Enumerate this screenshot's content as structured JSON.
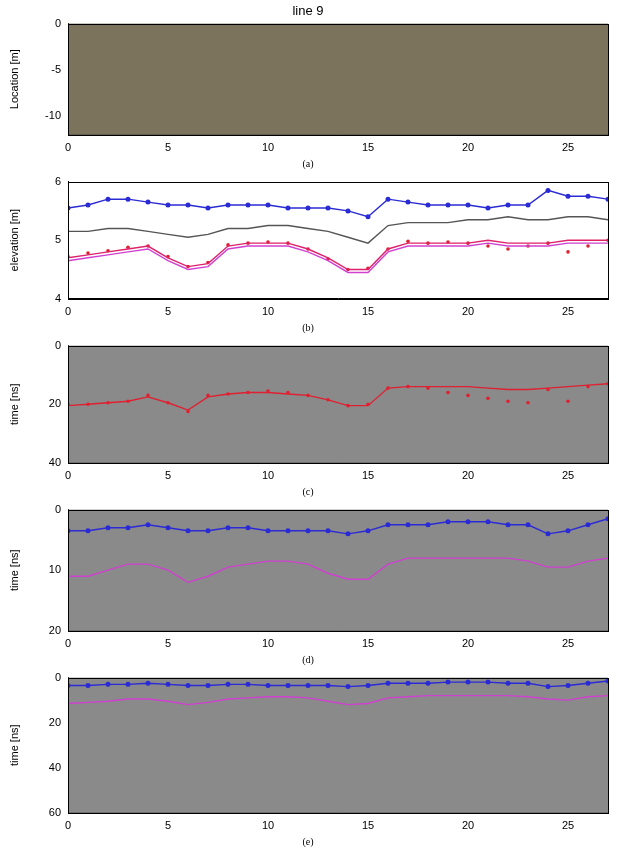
{
  "chart_data": [
    {
      "type": "image",
      "title": "line 9",
      "subtitle": "(a)",
      "y_label": "Location [m]",
      "color": "#7b735c",
      "grid": false,
      "xlim": [
        0,
        27
      ],
      "xticks": [
        0,
        5,
        10,
        15,
        20,
        25
      ],
      "ylim": [
        -12,
        0
      ],
      "yticks": [
        -10,
        -5,
        0
      ],
      "x": [],
      "series": []
    },
    {
      "type": "line",
      "subtitle": "(b)",
      "y_label": "elevation [m]",
      "grid": false,
      "xlim": [
        0,
        27
      ],
      "xticks": [
        0,
        5,
        10,
        15,
        20,
        25
      ],
      "ylim": [
        4,
        6
      ],
      "yticks": [
        4,
        5,
        6
      ],
      "x": [
        0,
        1,
        2,
        3,
        4,
        5,
        6,
        7,
        8,
        9,
        10,
        11,
        12,
        13,
        14,
        15,
        16,
        17,
        18,
        19,
        20,
        21,
        22,
        23,
        24,
        25,
        26,
        27
      ],
      "series": [
        {
          "color": "#2b2bd6",
          "marker": "circle",
          "line_style": "solid",
          "values": [
            5.55,
            5.6,
            5.7,
            5.7,
            5.65,
            5.6,
            5.6,
            5.55,
            5.6,
            5.6,
            5.6,
            5.55,
            5.55,
            5.55,
            5.5,
            5.4,
            5.7,
            5.65,
            5.6,
            5.6,
            5.6,
            5.55,
            5.6,
            5.6,
            5.85,
            5.75,
            5.75,
            5.7
          ]
        },
        {
          "color": "#555555",
          "marker": "none",
          "line_style": "solid",
          "values": [
            5.15,
            5.15,
            5.2,
            5.2,
            5.15,
            5.1,
            5.05,
            5.1,
            5.2,
            5.2,
            5.25,
            5.25,
            5.2,
            5.15,
            5.05,
            4.95,
            5.25,
            5.3,
            5.3,
            5.3,
            5.35,
            5.35,
            5.4,
            5.35,
            5.35,
            5.4,
            5.4,
            5.35
          ]
        },
        {
          "color": "#e0206a",
          "marker": "none",
          "line_style": "solid",
          "values": [
            4.7,
            4.75,
            4.8,
            4.85,
            4.9,
            4.7,
            4.55,
            4.6,
            4.9,
            4.95,
            4.95,
            4.95,
            4.85,
            4.7,
            4.5,
            4.5,
            4.85,
            4.95,
            4.95,
            4.95,
            4.95,
            5.0,
            4.95,
            4.95,
            4.95,
            5.0,
            5.0,
            5.0
          ]
        },
        {
          "color": "#d040d0",
          "marker": "none",
          "line_style": "solid",
          "values": [
            4.65,
            4.7,
            4.75,
            4.8,
            4.85,
            4.65,
            4.5,
            4.55,
            4.85,
            4.9,
            4.9,
            4.9,
            4.8,
            4.65,
            4.45,
            4.45,
            4.8,
            4.9,
            4.9,
            4.9,
            4.9,
            4.95,
            4.9,
            4.9,
            4.9,
            4.95,
            4.95,
            4.95
          ]
        },
        {
          "color": "#e02030",
          "marker": "circle",
          "line_style": "none",
          "values": [
            4.72,
            4.78,
            4.82,
            4.88,
            4.9,
            4.72,
            4.55,
            4.62,
            4.92,
            4.95,
            4.97,
            4.95,
            4.85,
            4.68,
            4.5,
            4.52,
            4.85,
            4.98,
            4.95,
            4.97,
            4.95,
            4.9,
            4.85,
            4.9,
            4.95,
            4.8,
            4.9,
            5.0
          ]
        }
      ]
    },
    {
      "type": "line",
      "subtitle": "(c)",
      "y_label": "time [ns]",
      "color": "#8a8a8a",
      "grid": false,
      "xlim": [
        0,
        27
      ],
      "xticks": [
        0,
        5,
        10,
        15,
        20,
        25
      ],
      "ylim": [
        40,
        0
      ],
      "yticks": [
        0,
        20,
        40
      ],
      "x": [
        0,
        1,
        2,
        3,
        4,
        5,
        6,
        7,
        8,
        9,
        10,
        11,
        12,
        13,
        14,
        15,
        16,
        17,
        18,
        19,
        20,
        21,
        22,
        23,
        24,
        25,
        26,
        27
      ],
      "series": [
        {
          "color": "#e02030",
          "marker": "none",
          "line_style": "solid",
          "values": [
            20.5,
            20,
            19.5,
            19,
            17.5,
            19.5,
            22,
            17.5,
            16.5,
            16,
            16,
            16.5,
            17,
            18.5,
            20.5,
            20.5,
            14.5,
            14,
            14,
            14,
            14,
            14.5,
            15,
            15,
            14.5,
            14,
            13.5,
            13
          ]
        },
        {
          "color": "#e02030",
          "marker": "circle",
          "line_style": "none",
          "values": [
            20,
            20,
            19.5,
            19,
            17,
            19.5,
            22.5,
            17,
            16.5,
            16,
            15.5,
            16,
            17,
            18.5,
            20.5,
            20,
            14.5,
            14,
            14.5,
            16,
            17,
            18,
            19,
            19.5,
            15,
            19,
            14,
            13
          ]
        }
      ]
    },
    {
      "type": "line",
      "subtitle": "(d)",
      "y_label": "time [ns]",
      "color": "#8a8a8a",
      "grid": false,
      "xlim": [
        0,
        27
      ],
      "xticks": [
        0,
        5,
        10,
        15,
        20,
        25
      ],
      "ylim": [
        20,
        0
      ],
      "yticks": [
        0,
        10,
        20
      ],
      "x": [
        0,
        1,
        2,
        3,
        4,
        5,
        6,
        7,
        8,
        9,
        10,
        11,
        12,
        13,
        14,
        15,
        16,
        17,
        18,
        19,
        20,
        21,
        22,
        23,
        24,
        25,
        26,
        27
      ],
      "series": [
        {
          "color": "#2b2bd6",
          "marker": "circle",
          "line_style": "solid",
          "values": [
            3.5,
            3.5,
            3,
            3,
            2.5,
            3,
            3.5,
            3.5,
            3,
            3,
            3.5,
            3.5,
            3.5,
            3.5,
            4,
            3.5,
            2.5,
            2.5,
            2.5,
            2,
            2,
            2,
            2.5,
            2.5,
            4,
            3.5,
            2.5,
            1.5
          ]
        },
        {
          "color": "#d040d0",
          "marker": "none",
          "line_style": "solid",
          "values": [
            11,
            11,
            10,
            9,
            9,
            10,
            12,
            11,
            9.5,
            9,
            8.5,
            8.5,
            9,
            10.5,
            11.5,
            11.5,
            9,
            8,
            8,
            8,
            8,
            8,
            8,
            8.5,
            9.5,
            9.5,
            8.5,
            8
          ]
        }
      ]
    },
    {
      "type": "line",
      "subtitle": "(e)",
      "y_label": "time [ns]",
      "color": "#8a8a8a",
      "grid": false,
      "xlim": [
        0,
        27
      ],
      "xticks": [
        0,
        5,
        10,
        15,
        20,
        25
      ],
      "ylim": [
        60,
        0
      ],
      "yticks": [
        0,
        20,
        40,
        60
      ],
      "x": [
        0,
        1,
        2,
        3,
        4,
        5,
        6,
        7,
        8,
        9,
        10,
        11,
        12,
        13,
        14,
        15,
        16,
        17,
        18,
        19,
        20,
        21,
        22,
        23,
        24,
        25,
        26,
        27
      ],
      "series": [
        {
          "color": "#2b2bd6",
          "marker": "circle",
          "line_style": "solid",
          "values": [
            3.5,
            3.5,
            3,
            3,
            2.5,
            3,
            3.5,
            3.5,
            3,
            3,
            3.5,
            3.5,
            3.5,
            3.5,
            4,
            3.5,
            2.5,
            2.5,
            2.5,
            2,
            2,
            2,
            2.5,
            2.5,
            4,
            3.5,
            2.5,
            1.5
          ]
        },
        {
          "color": "#d040d0",
          "marker": "none",
          "line_style": "solid",
          "values": [
            11.5,
            11,
            10.5,
            9.5,
            9.5,
            10.5,
            12,
            11,
            9.5,
            9,
            8.5,
            8.5,
            9,
            10.5,
            12,
            11.5,
            9,
            8.5,
            8,
            8,
            8,
            8,
            8,
            8.5,
            9.5,
            10,
            8.5,
            8
          ]
        }
      ]
    }
  ]
}
